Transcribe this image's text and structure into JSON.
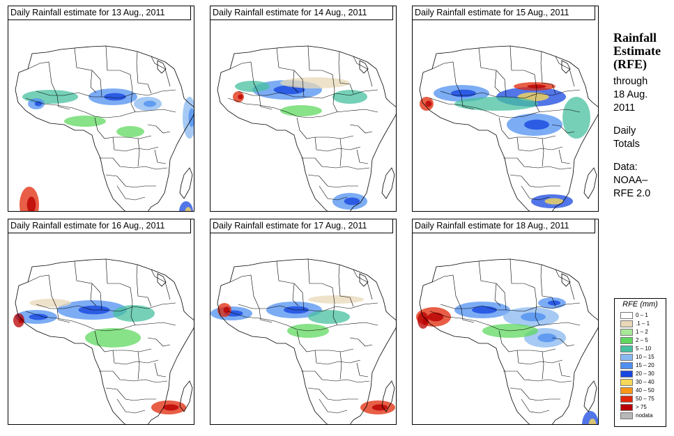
{
  "panels": [
    {
      "title": "Daily Rainfall estimate for  13 Aug., 2011"
    },
    {
      "title": "Daily Rainfall estimate for  14 Aug., 2011"
    },
    {
      "title": "Daily Rainfall estimate for  15 Aug., 2011"
    },
    {
      "title": "Daily Rainfall estimate for  16 Aug., 2011"
    },
    {
      "title": "Daily Rainfall estimate for  17 Aug., 2011"
    },
    {
      "title": "Daily Rainfall estimate for  18 Aug., 2011"
    }
  ],
  "sidebar": {
    "heading_line1": "Rainfall",
    "heading_line2": "Estimate",
    "heading_line3": "(RFE)",
    "through": "through",
    "date_line1": "18 Aug.",
    "date_line2": "2011",
    "daily": "Daily",
    "totals": "Totals",
    "data_label": "Data:",
    "source_line1": "NOAA–",
    "source_line2": "RFE 2.0"
  },
  "legend": {
    "title": "RFE (mm)",
    "items": [
      {
        "label": "0 – 1",
        "color": "#ffffff"
      },
      {
        "label": ".1 – 1",
        "color": "#e8d8b8"
      },
      {
        "label": "1 – 2",
        "color": "#a8e898"
      },
      {
        "label": "2 – 5",
        "color": "#60d860"
      },
      {
        "label": "5 – 10",
        "color": "#48c0a0"
      },
      {
        "label": "10 – 15",
        "color": "#88b8f0"
      },
      {
        "label": "15 – 20",
        "color": "#5090f0"
      },
      {
        "label": "20 – 30",
        "color": "#1848e0"
      },
      {
        "label": "30 – 40",
        "color": "#f8d858"
      },
      {
        "label": "40 – 50",
        "color": "#f89818"
      },
      {
        "label": "50 – 75",
        "color": "#e02808"
      },
      {
        "label": "> 75",
        "color": "#b80000"
      },
      {
        "label": "nodata",
        "color": "#b8b8b8"
      }
    ]
  }
}
